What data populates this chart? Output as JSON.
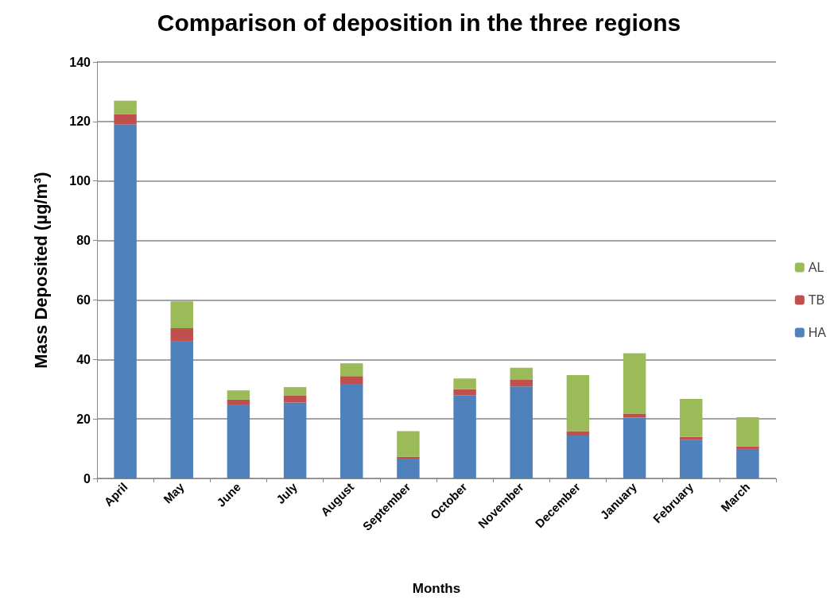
{
  "chart_data": {
    "type": "bar",
    "title": "Comparison of deposition in the three regions",
    "xlabel": "Months",
    "ylabel": "Mass Deposited (µg/m³)",
    "categories": [
      "April",
      "May",
      "June",
      "July",
      "August",
      "September",
      "October",
      "November",
      "December",
      "January",
      "February",
      "March"
    ],
    "series": [
      {
        "name": "HA",
        "color": "#4f81bd",
        "values": [
          119,
          46,
          24.6,
          25.5,
          31.8,
          6.7,
          27.9,
          30.9,
          14.4,
          20.4,
          13,
          9.9
        ]
      },
      {
        "name": "TB",
        "color": "#c0504d",
        "values": [
          3.5,
          4.5,
          1.9,
          2.3,
          2.6,
          0.6,
          2.1,
          2.4,
          1.5,
          1.4,
          1,
          0.9
        ]
      },
      {
        "name": "AL",
        "color": "#9bbb59",
        "values": [
          4.5,
          9,
          3.1,
          2.9,
          4.3,
          8.6,
          3.6,
          3.9,
          18.8,
          20.3,
          12.7,
          9.8
        ]
      }
    ],
    "stacked": true,
    "ylim": [
      0,
      140
    ],
    "yticks": [
      0,
      20,
      40,
      60,
      80,
      100,
      120,
      140
    ],
    "grid": "y",
    "legend": "right"
  }
}
